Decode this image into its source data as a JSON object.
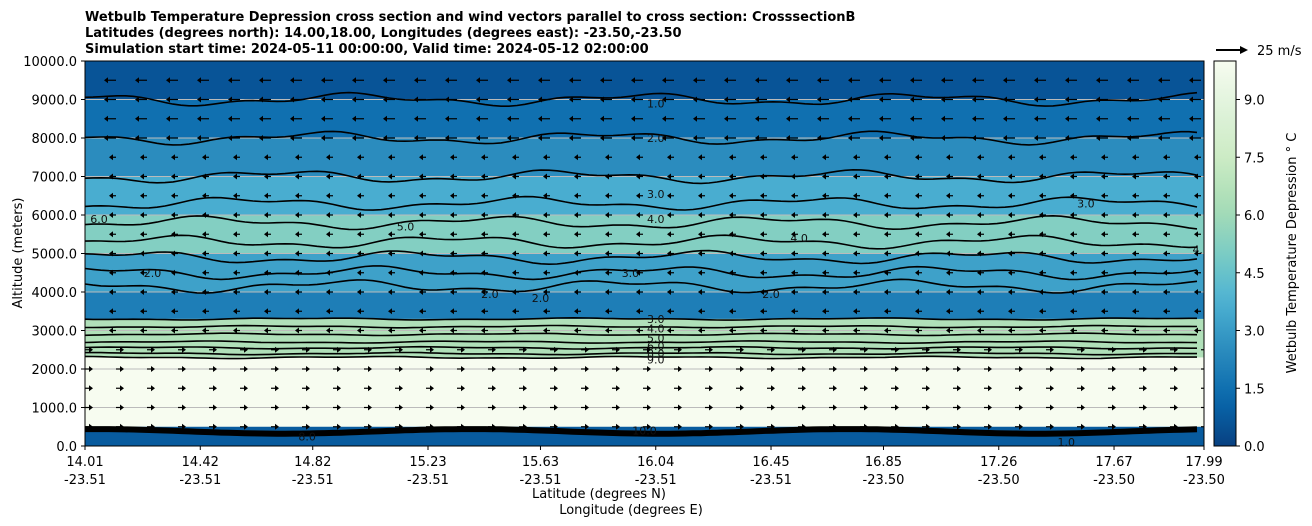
{
  "chart_data": {
    "type": "contour",
    "title_lines": [
      "Wetbulb Temperature Depression cross section and wind vectors parallel to cross section: CrosssectionB",
      "Latitudes (degrees north): 14.00,18.00, Longitudes (degrees east): -23.50,-23.50",
      "Simulation start time: 2024-05-11 00:00:00, Valid time: 2024-05-12 02:00:00"
    ],
    "xlabel_lat": "Latitude (degrees N)",
    "xlabel_lon": "Longitude (degrees E)",
    "ylabel": "Altitude (meters)",
    "x_ticks": [
      {
        "lat": "14.01",
        "lon": "-23.51"
      },
      {
        "lat": "14.42",
        "lon": "-23.51"
      },
      {
        "lat": "14.82",
        "lon": "-23.51"
      },
      {
        "lat": "15.23",
        "lon": "-23.51"
      },
      {
        "lat": "15.63",
        "lon": "-23.51"
      },
      {
        "lat": "16.04",
        "lon": "-23.51"
      },
      {
        "lat": "16.45",
        "lon": "-23.51"
      },
      {
        "lat": "16.85",
        "lon": "-23.50"
      },
      {
        "lat": "17.26",
        "lon": "-23.50"
      },
      {
        "lat": "17.67",
        "lon": "-23.50"
      },
      {
        "lat": "17.99",
        "lon": "-23.50"
      }
    ],
    "y_ticks": [
      "0.0",
      "1000.0",
      "2000.0",
      "3000.0",
      "4000.0",
      "5000.0",
      "6000.0",
      "7000.0",
      "8000.0",
      "9000.0",
      "10000.0"
    ],
    "ylim": [
      0,
      10000
    ],
    "grid": true,
    "colorbar": {
      "label": "Wetbulb Temperature Depression ° C",
      "ticks": [
        "0.0",
        "1.5",
        "3.0",
        "4.5",
        "6.0",
        "7.5",
        "9.0"
      ],
      "range": [
        0,
        10
      ],
      "colormap": "GnBu_r"
    },
    "reference_vector_label": "25 m/s",
    "layers": [
      {
        "z_top": 10000,
        "z_bottom": 9000,
        "value": 0.6
      },
      {
        "z_top": 9000,
        "z_bottom": 8000,
        "value": 1.5
      },
      {
        "z_top": 8000,
        "z_bottom": 7000,
        "value": 2.5
      },
      {
        "z_top": 7000,
        "z_bottom": 6000,
        "value": 3.6
      },
      {
        "z_top": 6000,
        "z_bottom": 5000,
        "value": 5.2
      },
      {
        "z_top": 5000,
        "z_bottom": 4000,
        "value": 3.2
      },
      {
        "z_top": 4000,
        "z_bottom": 3300,
        "value": 2.0
      },
      {
        "z_top": 3300,
        "z_bottom": 2300,
        "value": 6.5
      },
      {
        "z_top": 2300,
        "z_bottom": 500,
        "value": 10.0
      },
      {
        "z_top": 500,
        "z_bottom": 0,
        "value": 0.8
      }
    ],
    "contour_labels": [
      {
        "text": "1.0",
        "lat": 16.04,
        "alt": 8900
      },
      {
        "text": "2.0",
        "lat": 16.04,
        "alt": 8000
      },
      {
        "text": "3.0",
        "lat": 16.04,
        "alt": 6550
      },
      {
        "text": "4.0",
        "lat": 16.04,
        "alt": 5900
      },
      {
        "text": "5.0",
        "lat": 15.15,
        "alt": 5700
      },
      {
        "text": "6.0",
        "lat": 14.06,
        "alt": 5900
      },
      {
        "text": "2.0",
        "lat": 14.25,
        "alt": 4500
      },
      {
        "text": "3.0",
        "lat": 15.95,
        "alt": 4500
      },
      {
        "text": "2.0",
        "lat": 15.45,
        "alt": 3950
      },
      {
        "text": "2.0",
        "lat": 15.63,
        "alt": 3850
      },
      {
        "text": "4.0",
        "lat": 16.55,
        "alt": 5400
      },
      {
        "text": "2.0",
        "lat": 16.45,
        "alt": 3950
      },
      {
        "text": "3.0",
        "lat": 17.57,
        "alt": 6300
      },
      {
        "text": "4.0",
        "lat": 17.98,
        "alt": 5100
      },
      {
        "text": "3.0",
        "lat": 16.04,
        "alt": 3300
      },
      {
        "text": "4.0",
        "lat": 16.04,
        "alt": 3050
      },
      {
        "text": "5.0",
        "lat": 16.04,
        "alt": 2800
      },
      {
        "text": "6.0",
        "lat": 16.04,
        "alt": 2600
      },
      {
        "text": "8.0",
        "lat": 16.04,
        "alt": 2400
      },
      {
        "text": "9.0",
        "lat": 16.04,
        "alt": 2250
      },
      {
        "text": "1.0",
        "lat": 17.5,
        "alt": 100
      },
      {
        "text": "8.0",
        "lat": 14.8,
        "alt": 250
      },
      {
        "text": "10.0",
        "lat": 16.0,
        "alt": 400
      }
    ]
  }
}
